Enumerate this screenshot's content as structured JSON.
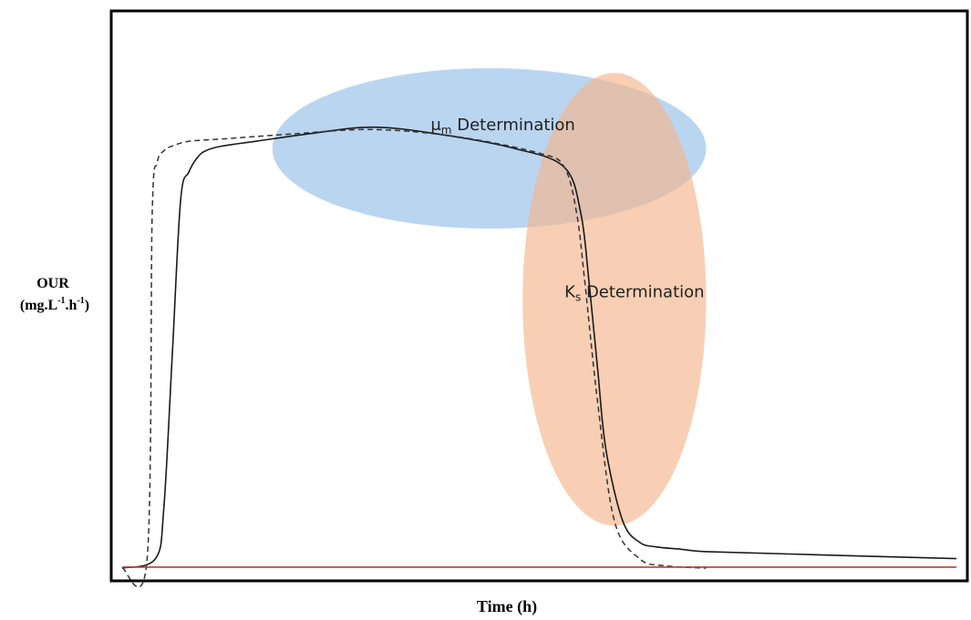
{
  "chart_data": {
    "type": "line",
    "title": "",
    "xlabel": "Time (h)",
    "ylabel": {
      "line1": "OUR",
      "line2": "(mg.L",
      "exp1": "-1",
      "mid": ".h",
      "exp2": "-1",
      "end": ")"
    },
    "xlim": [
      0,
      10
    ],
    "ylim": [
      0,
      10
    ],
    "grid": false,
    "legend": "none",
    "series": [
      {
        "style": "solid",
        "color": "#1a1a1a",
        "x": [
          0,
          0.4,
          0.5,
          0.6,
          0.7,
          0.8,
          0.9,
          1.0,
          1.2,
          1.6,
          2.2,
          3.0,
          3.8,
          4.7,
          5.3,
          5.5,
          5.6,
          5.7,
          5.8,
          6.0,
          6.2,
          6.4,
          6.7,
          7.0,
          8.0,
          10.0
        ],
        "y": [
          0,
          0.2,
          1.3,
          4.5,
          7.8,
          8.4,
          8.7,
          8.85,
          8.95,
          9.05,
          9.2,
          9.35,
          9.2,
          8.9,
          8.5,
          7.5,
          6.0,
          4.2,
          2.5,
          1.0,
          0.55,
          0.45,
          0.4,
          0.35,
          0.3,
          0.2
        ]
      },
      {
        "style": "dashed",
        "color": "#333333",
        "x": [
          0,
          0.3,
          0.36,
          0.42,
          0.5,
          0.6,
          0.8,
          1.2,
          2.0,
          3.0,
          4.0,
          5.0,
          5.3,
          5.45,
          5.55,
          5.7,
          5.9,
          6.2,
          6.5,
          7.0
        ],
        "y": [
          0,
          0.2,
          7.5,
          8.6,
          8.85,
          8.95,
          9.05,
          9.1,
          9.2,
          9.3,
          9.15,
          8.8,
          8.5,
          7.5,
          6.0,
          3.5,
          1.0,
          0.2,
          0.05,
          0
        ]
      },
      {
        "style": "solid",
        "color": "#c0392b",
        "x": [
          0,
          10
        ],
        "y": [
          0.02,
          0.02
        ]
      }
    ],
    "annotations": [
      {
        "text_main": "μ",
        "text_sub": "m",
        "text_rest": " Determination",
        "color": "#a9cbec",
        "opacity": 0.8,
        "cx": 4.4,
        "cy": 8.9,
        "rx": 2.6,
        "ry": 1.7
      },
      {
        "text_main": "K",
        "text_sub": "s",
        "text_rest": " Determination",
        "color": "#f4b68c",
        "opacity": 0.65,
        "cx": 5.9,
        "cy": 5.7,
        "rx": 1.1,
        "ry": 4.8
      }
    ]
  }
}
